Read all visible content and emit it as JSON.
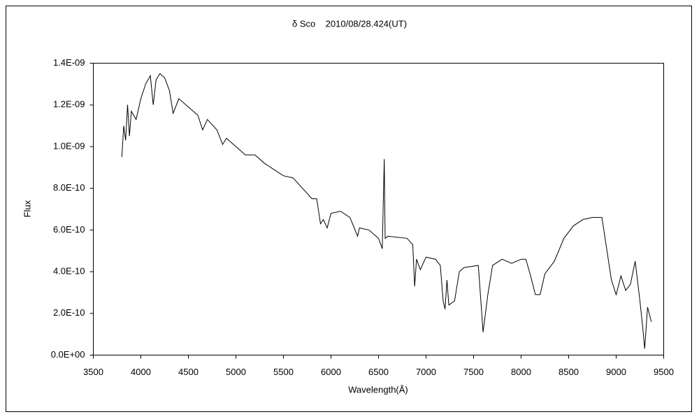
{
  "chart_data": {
    "type": "line",
    "title": "δ Sco    2010/08/28.424(UT)",
    "x_label": "Wavelength(Å)",
    "y_label": "Flux",
    "color": "#000000",
    "x": [
      3800,
      3820,
      3840,
      3860,
      3880,
      3900,
      3950,
      4000,
      4050,
      4100,
      4130,
      4160,
      4200,
      4250,
      4300,
      4340,
      4400,
      4500,
      4600,
      4650,
      4700,
      4800,
      4860,
      4900,
      5000,
      5100,
      5200,
      5300,
      5400,
      5500,
      5600,
      5700,
      5800,
      5850,
      5890,
      5920,
      5960,
      6000,
      6100,
      6200,
      6280,
      6300,
      6400,
      6500,
      6540,
      6560,
      6570,
      6600,
      6800,
      6860,
      6880,
      6900,
      6940,
      7000,
      7100,
      7150,
      7180,
      7200,
      7220,
      7240,
      7300,
      7350,
      7400,
      7550,
      7600,
      7650,
      7700,
      7800,
      7900,
      8000,
      8050,
      8100,
      8150,
      8200,
      8250,
      8350,
      8450,
      8550,
      8650,
      8750,
      8850,
      8900,
      8950,
      9000,
      9050,
      9100,
      9150,
      9200,
      9250,
      9280,
      9300,
      9330,
      9370
    ],
    "values": [
      9.5e-10,
      1.1e-09,
      1.03e-09,
      1.2e-09,
      1.05e-09,
      1.17e-09,
      1.13e-09,
      1.23e-09,
      1.3e-09,
      1.34e-09,
      1.2e-09,
      1.32e-09,
      1.35e-09,
      1.33e-09,
      1.27e-09,
      1.16e-09,
      1.23e-09,
      1.19e-09,
      1.15e-09,
      1.08e-09,
      1.13e-09,
      1.08e-09,
      1.01e-09,
      1.04e-09,
      1e-09,
      9.6e-10,
      9.6e-10,
      9.2e-10,
      8.9e-10,
      8.6e-10,
      8.5e-10,
      8e-10,
      7.5e-10,
      7.5e-10,
      6.3e-10,
      6.5e-10,
      6.1e-10,
      6.8e-10,
      6.9e-10,
      6.6e-10,
      5.7e-10,
      6.1e-10,
      6e-10,
      5.6e-10,
      5.1e-10,
      9.4e-10,
      5.6e-10,
      5.7e-10,
      5.6e-10,
      5.3e-10,
      3.3e-10,
      4.6e-10,
      4.1e-10,
      4.7e-10,
      4.6e-10,
      4.3e-10,
      2.6e-10,
      2.2e-10,
      3.6e-10,
      2.4e-10,
      2.6e-10,
      4e-10,
      4.2e-10,
      4.3e-10,
      1.1e-10,
      2.9e-10,
      4.3e-10,
      4.6e-10,
      4.4e-10,
      4.6e-10,
      4.6e-10,
      3.8e-10,
      2.9e-10,
      2.9e-10,
      3.9e-10,
      4.5e-10,
      5.6e-10,
      6.2e-10,
      6.5e-10,
      6.6e-10,
      6.6e-10,
      5.1e-10,
      3.6e-10,
      2.9e-10,
      3.8e-10,
      3.1e-10,
      3.4e-10,
      4.5e-10,
      2.6e-10,
      1.3e-10,
      3e-11,
      2.3e-10,
      1.6e-10
    ],
    "xlim": [
      3500,
      9500
    ],
    "xticks": [
      3500,
      4000,
      4500,
      5000,
      5500,
      6000,
      6500,
      7000,
      7500,
      8000,
      8500,
      9000,
      9500
    ],
    "ylim": [
      0,
      1.4e-09
    ],
    "yticks": [
      {
        "value": 0,
        "label": "0.0E+00"
      },
      {
        "value": 2e-10,
        "label": "2.0E-10"
      },
      {
        "value": 4e-10,
        "label": "4.0E-10"
      },
      {
        "value": 6e-10,
        "label": "6.0E-10"
      },
      {
        "value": 8e-10,
        "label": "8.0E-10"
      },
      {
        "value": 1e-09,
        "label": "1.0E-09"
      },
      {
        "value": 1.2e-09,
        "label": "1.2E-09"
      },
      {
        "value": 1.4e-09,
        "label": "1.4E-09"
      }
    ],
    "grid": false
  }
}
